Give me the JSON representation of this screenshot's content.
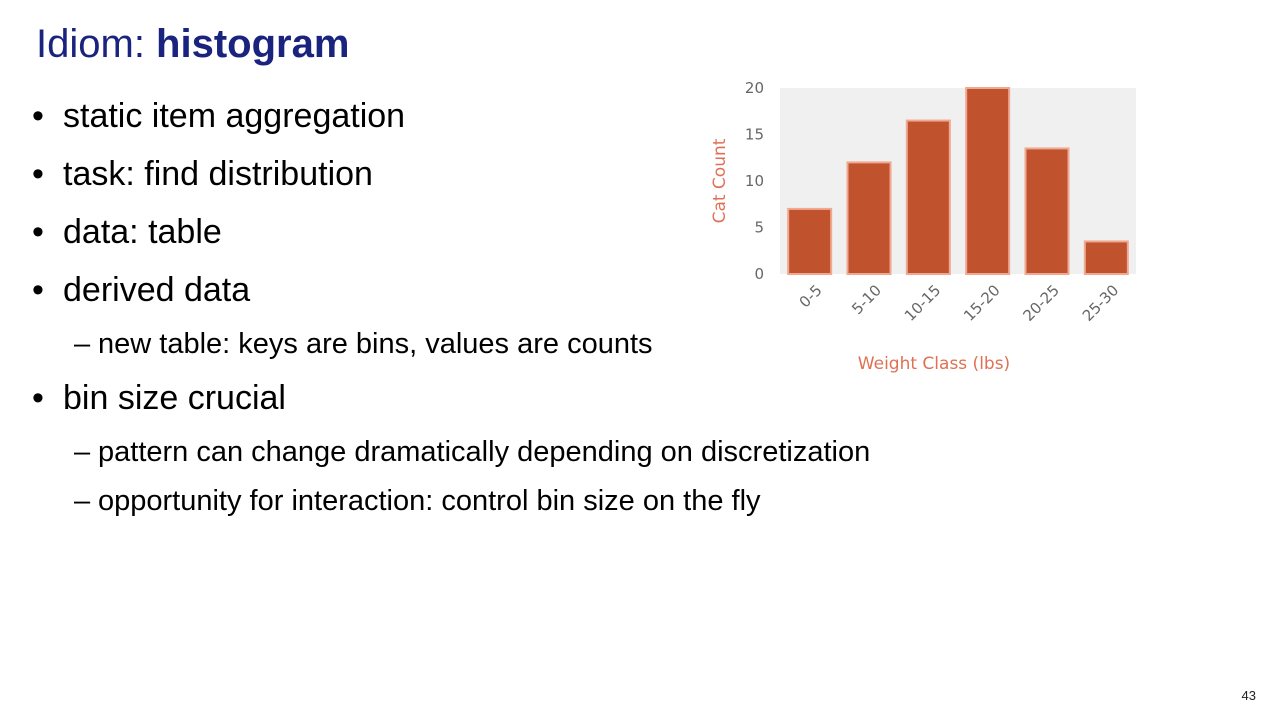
{
  "slide": {
    "title_prefix": "Idiom: ",
    "title_emphasis": "histogram",
    "bullet_glyph": "•",
    "dash_glyph": "–",
    "bullets": [
      "static item aggregation",
      "task: find distribution",
      "data: table",
      "derived data",
      "new table: keys are bins, values are counts",
      "bin size crucial",
      "pattern can change dramatically depending on discretization",
      "opportunity for interaction: control bin size on the fly"
    ],
    "page_number": "43"
  },
  "chart_data": {
    "type": "bar",
    "categories": [
      "0-5",
      "5-10",
      "10-15",
      "15-20",
      "20-25",
      "25-30"
    ],
    "values": [
      7,
      12,
      16.5,
      20,
      13.5,
      3.5
    ],
    "xlabel": "Weight Class (lbs)",
    "ylabel": "Cat Count",
    "ylim": [
      0,
      20
    ],
    "yticks": [
      0,
      5,
      10,
      15,
      20
    ],
    "grid": false,
    "bar_color": "#c0532d",
    "bar_edge_color": "#f0a890",
    "label_color": "#e07055",
    "plot_background": "#f0f0f0"
  }
}
